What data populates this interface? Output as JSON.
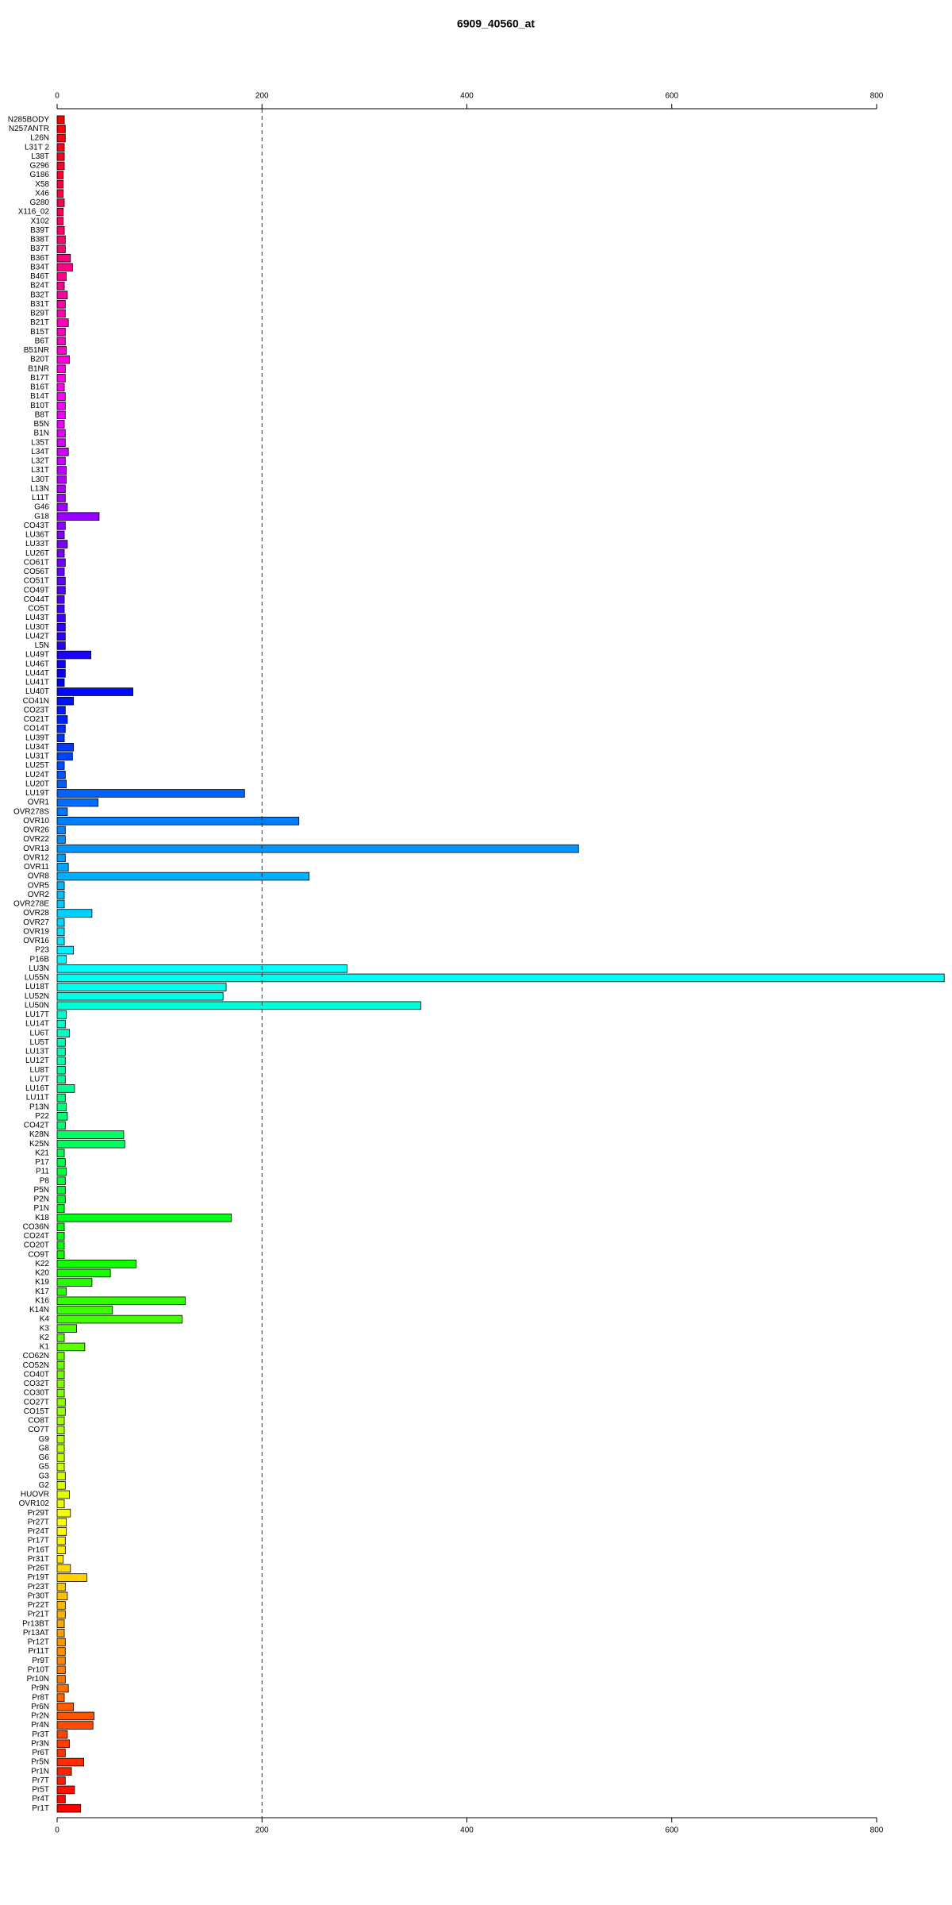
{
  "chart_data": {
    "type": "barh",
    "title": "6909_40560_at",
    "categories": [
      "N285BODY",
      "N257ANTR",
      "L26N",
      "L31T 2",
      "L38T",
      "G296",
      "G186",
      "X58",
      "X46",
      "G280",
      "X116_02",
      "X102",
      "B39T",
      "B38T",
      "B37T",
      "B36T",
      "B34T",
      "B46T",
      "B24T",
      "B32T",
      "B31T",
      "B29T",
      "B21T",
      "B15T",
      "B6T",
      "B51NR",
      "B20T",
      "B1NR",
      "B17T",
      "B16T",
      "B14T",
      "B10T",
      "B8T",
      "B5N",
      "B1N",
      "L35T",
      "L34T",
      "L32T",
      "L31T",
      "L30T",
      "L13N",
      "L11T",
      "G46",
      "G18",
      "CO43T",
      "LU36T",
      "LU33T",
      "LU26T",
      "CO61T",
      "CO56T",
      "CO51T",
      "CO49T",
      "CO44T",
      "CO5T",
      "LU43T",
      "LU30T",
      "LU42T",
      "L5N",
      "LU49T",
      "LU46T",
      "LU44T",
      "LU41T",
      "LU40T",
      "CO41N",
      "CO23T",
      "CO21T",
      "CO14T",
      "LU39T",
      "LU34T",
      "LU31T",
      "LU25T",
      "LU24T",
      "LU20T",
      "LU19T",
      "OVR1",
      "OVR278S",
      "OVR10",
      "OVR26",
      "OVR22",
      "OVR13",
      "OVR12",
      "OVR11",
      "OVR8",
      "OVR5",
      "OVR2",
      "OVR278E",
      "OVR28",
      "OVR27",
      "OVR19",
      "OVR16",
      "P23",
      "P16B",
      "LU3N",
      "LU55N",
      "LU18T",
      "LU52N",
      "LU50N",
      "LU17T",
      "LU14T",
      "LU6T",
      "LU5T",
      "LU13T",
      "LU12T",
      "LU8T",
      "LU7T",
      "LU16T",
      "LU11T",
      "P13N",
      "P22",
      "CO42T",
      "K28N",
      "K25N",
      "K21",
      "P17",
      "P11",
      "P8",
      "P5N",
      "P2N",
      "P1N",
      "K18",
      "CO36N",
      "CO24T",
      "CO20T",
      "CO9T",
      "K22",
      "K20",
      "K19",
      "K17",
      "K16",
      "K14N",
      "K4",
      "K3",
      "K2",
      "K1",
      "CO62N",
      "CO52N",
      "CO40T",
      "CO32T",
      "CO30T",
      "CO27T",
      "CO15T",
      "CO8T",
      "CO7T",
      "G9",
      "G8",
      "G6",
      "G5",
      "G3",
      "G2",
      "HUOVR",
      "OVR102",
      "Pr29T",
      "Pr27T",
      "Pr24T",
      "Pr17T",
      "Pr16T",
      "Pr31T",
      "Pr26T",
      "Pr19T",
      "Pr23T",
      "Pr30T",
      "Pr22T",
      "Pr21T",
      "Pr13BT",
      "Pr13AT",
      "Pr12T",
      "Pr11T",
      "Pr9T",
      "Pr10T",
      "Pr10N",
      "Pr9N",
      "Pr8T",
      "Pr6N",
      "Pr2N",
      "Pr4N",
      "Pr3T",
      "Pr3N",
      "Pr6T",
      "Pr5N",
      "Pr1N",
      "Pr7T",
      "Pr5T",
      "Pr4T",
      "Pr1T"
    ],
    "values": [
      7,
      8,
      8,
      7,
      7,
      7,
      6,
      6,
      6,
      7,
      6,
      6,
      7,
      8,
      8,
      13,
      15,
      9,
      7,
      10,
      8,
      8,
      11,
      8,
      8,
      9,
      12,
      8,
      8,
      7,
      8,
      8,
      8,
      7,
      8,
      8,
      11,
      8,
      9,
      9,
      8,
      8,
      10,
      41,
      8,
      7,
      10,
      7,
      8,
      7,
      8,
      8,
      7,
      7,
      8,
      8,
      8,
      8,
      33,
      8,
      8,
      7,
      74,
      16,
      8,
      10,
      8,
      7,
      16,
      15,
      7,
      8,
      9,
      183,
      40,
      10,
      236,
      8,
      8,
      509,
      8,
      11,
      246,
      7,
      7,
      7,
      34,
      7,
      7,
      7,
      16,
      9,
      283,
      866,
      165,
      162,
      355,
      9,
      8,
      12,
      8,
      8,
      8,
      8,
      8,
      17,
      8,
      9,
      10,
      8,
      65,
      66,
      7,
      8,
      9,
      8,
      8,
      8,
      7,
      170,
      7,
      7,
      7,
      7,
      77,
      52,
      34,
      9,
      125,
      54,
      122,
      19,
      7,
      27,
      7,
      7,
      7,
      7,
      7,
      8,
      8,
      7,
      7,
      7,
      7,
      7,
      7,
      8,
      8,
      12,
      7,
      13,
      9,
      9,
      8,
      8,
      6,
      13,
      29,
      8,
      10,
      8,
      8,
      7,
      7,
      8,
      8,
      8,
      8,
      8,
      11,
      7,
      16,
      36,
      35,
      10,
      12,
      8,
      26,
      14,
      8,
      17,
      8,
      23
    ],
    "color_scale": [
      "#ff0000",
      "#ff00ff",
      "#0000ff",
      "#00ffff",
      "#00ff00",
      "#ffff00",
      "#ff0000"
    ],
    "xlim": [
      0,
      800
    ],
    "xticks": [
      0,
      200,
      400,
      600,
      800
    ],
    "reference_x": 200
  }
}
